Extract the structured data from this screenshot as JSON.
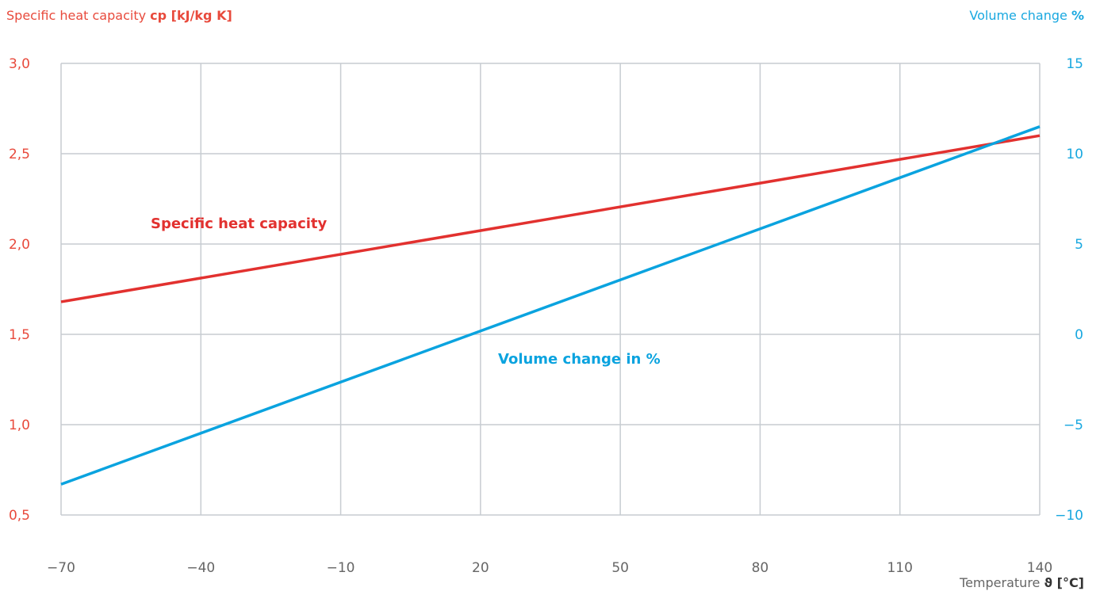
{
  "chart_data": {
    "type": "line",
    "left_axis_title": {
      "text": "Specific heat capacity",
      "unit": "cp [kJ/kg K]"
    },
    "right_axis_title": {
      "text": "Volume change",
      "unit": "%"
    },
    "x_axis_title": {
      "text": "Temperature",
      "unit": "ϑ [°C]"
    },
    "x_ticks": [
      "−70",
      "−40",
      "−10",
      "20",
      "50",
      "80",
      "110",
      "140"
    ],
    "x_tick_values": [
      -70,
      -40,
      -10,
      20,
      50,
      80,
      110,
      140
    ],
    "xlim": [
      -70,
      140
    ],
    "left_ticks": [
      "0,5",
      "1,0",
      "1,5",
      "2,0",
      "2,5",
      "3,0"
    ],
    "left_tick_values": [
      0.5,
      1.0,
      1.5,
      2.0,
      2.5,
      3.0
    ],
    "ylim_left": [
      0.5,
      3.0
    ],
    "right_ticks": [
      "−10",
      "−5",
      "0",
      "5",
      "10",
      "15"
    ],
    "right_tick_values": [
      -10,
      -5,
      0,
      5,
      10,
      15
    ],
    "ylim_right": [
      -10,
      15
    ],
    "grid": true,
    "series": [
      {
        "name": "Specific heat capacity",
        "axis": "left",
        "color": "#e2312f",
        "x": [
          -70,
          140
        ],
        "y": [
          1.68,
          2.6
        ]
      },
      {
        "name": "Volume change in %",
        "axis": "right",
        "color": "#0aa3df",
        "x": [
          -70,
          140
        ],
        "y": [
          -8.3,
          11.5
        ]
      }
    ],
    "colors": {
      "left_axis": "#e84a3c",
      "right_axis": "#19a8e0",
      "grid": "#c7ccd1",
      "tick_x": "#666666"
    }
  }
}
